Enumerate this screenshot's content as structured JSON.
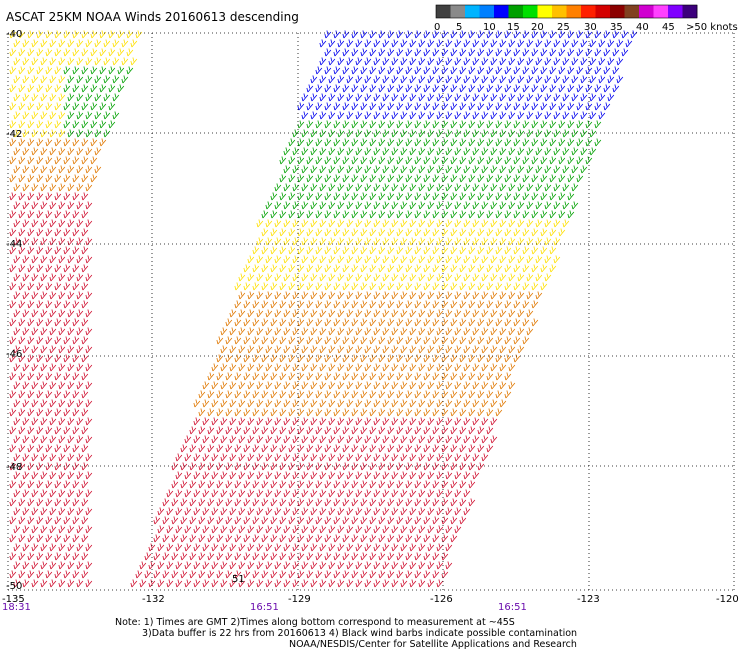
{
  "title": "ASCAT 25KM NOAA Winds 20160613 descending",
  "colorbar": {
    "colors": [
      "#404040",
      "#8a8a8a",
      "#00b4ff",
      "#0080ff",
      "#0000ff",
      "#00a000",
      "#00e000",
      "#ffff00",
      "#ffc000",
      "#ff8000",
      "#ff2000",
      "#d40000",
      "#8b0000",
      "#804020",
      "#d000d0",
      "#ff40ff",
      "#8000ff",
      "#3c007c"
    ],
    "labels": [
      "0",
      "5",
      "10",
      "15",
      "20",
      "25",
      "30",
      "35",
      "40",
      "45",
      ">50 knots"
    ]
  },
  "lat_labels": [
    "-40",
    "-42",
    "-44",
    "-46",
    "-48",
    "-50"
  ],
  "lon_labels": [
    "-135",
    "-132",
    "-129",
    "-126",
    "-123",
    "-120"
  ],
  "time_labels": [
    "18:31",
    "16:51",
    "16:51"
  ],
  "pass_marker": "51",
  "notes": [
    "Note: 1) Times are GMT 2)Times along bottom correspond to measurement at ~45S",
    "3)Data buffer is 22 hrs from 20160613 4) Black wind barbs indicate possible contamination",
    "NOAA/NESDIS/Center for Satellite Applications and Research"
  ],
  "barb_colors": {
    "blue": "#0000ee",
    "green": "#00a000",
    "yellow": "#ffe000",
    "orange": "#e07800",
    "red": "#d01030"
  }
}
